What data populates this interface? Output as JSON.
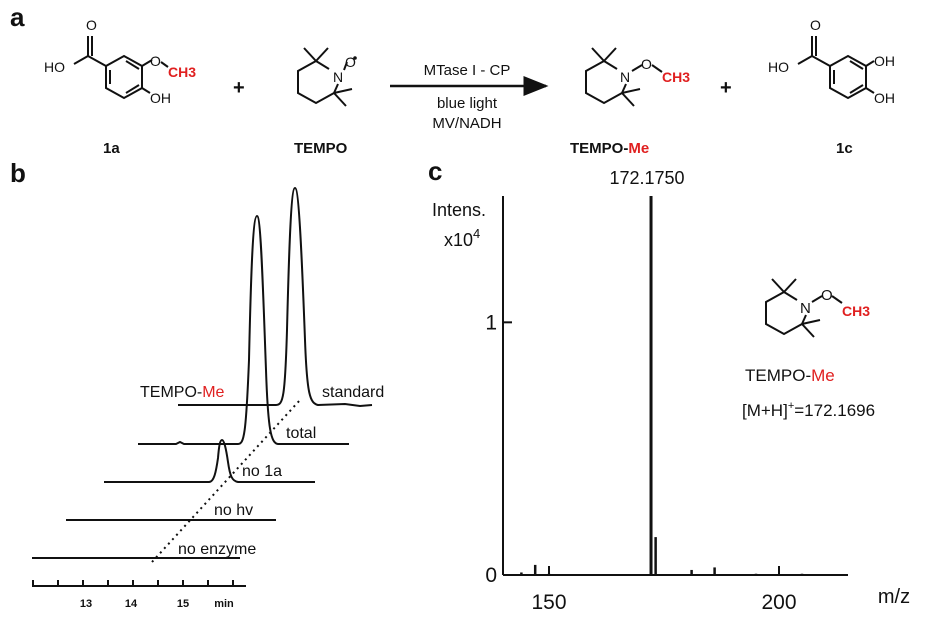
{
  "panels": {
    "a": "a",
    "b": "b",
    "c": "c"
  },
  "scheme": {
    "reactant1": {
      "label": "1a",
      "ho": "HO",
      "o": "O",
      "oh": "OH",
      "ch3": "CH3"
    },
    "reactant2": {
      "label": "TEMPO",
      "n": "N",
      "o": "O"
    },
    "plus": "+",
    "conditions": {
      "enzyme": "MTase I - CP",
      "light": "blue light",
      "reductant": "MV/NADH"
    },
    "product1": {
      "label_prefix": "TEMPO-",
      "label_suffix": "Me",
      "n": "N",
      "o": "O",
      "ch3": "CH3"
    },
    "product2": {
      "label": "1c",
      "ho": "HO",
      "oh1": "OH",
      "oh2": "OH",
      "o": "O"
    }
  },
  "hplc": {
    "traces": [
      "standard",
      "total",
      "no 1a",
      "no hv",
      "no enzyme"
    ],
    "peak_label_prefix": "TEMPO-",
    "peak_label_suffix": "Me",
    "axis_ticks": [
      "13",
      "14",
      "15"
    ],
    "axis_unit": "min"
  },
  "ms": {
    "ylabel_line1": "Intens.",
    "ylabel_line2": "x10",
    "ylabel_exp": "4",
    "yticks": [
      "0",
      "1"
    ],
    "xticks": [
      "150",
      "200"
    ],
    "xlabel": "m/z",
    "peak_label": "172.1750",
    "compound_prefix": "TEMPO-",
    "compound_suffix": "Me",
    "formula_prefix": "[M+H]",
    "formula_charge": "+",
    "formula_value": "=172.1696",
    "inset": {
      "n": "N",
      "o": "O",
      "ch3": "CH3"
    }
  },
  "chart_data": {
    "type": "bar",
    "title": "",
    "xlabel": "m/z",
    "ylabel": "Intens. x10^4",
    "xlim": [
      140,
      215
    ],
    "ylim": [
      0,
      1.5
    ],
    "x": [
      144,
      147,
      150,
      172.18,
      173.18,
      181,
      186,
      195,
      205
    ],
    "values": [
      0.01,
      0.04,
      0.005,
      1.5,
      0.15,
      0.02,
      0.03,
      0.005,
      0.005
    ]
  }
}
